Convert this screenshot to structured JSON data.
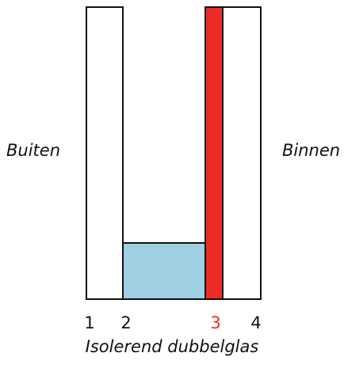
{
  "labels": {
    "outside": "Buiten",
    "inside": "Binnen",
    "caption": "Isolerend dubbelglas"
  },
  "surfaces": [
    {
      "number": "1",
      "color": "#111111"
    },
    {
      "number": "2",
      "color": "#111111"
    },
    {
      "number": "3",
      "color": "#e8302a"
    },
    {
      "number": "4",
      "color": "#111111"
    }
  ],
  "colors": {
    "glass": "#ffffff",
    "outline": "#111111",
    "coated_pane": "#ec2b24",
    "cavity": "#9ecfe3"
  }
}
